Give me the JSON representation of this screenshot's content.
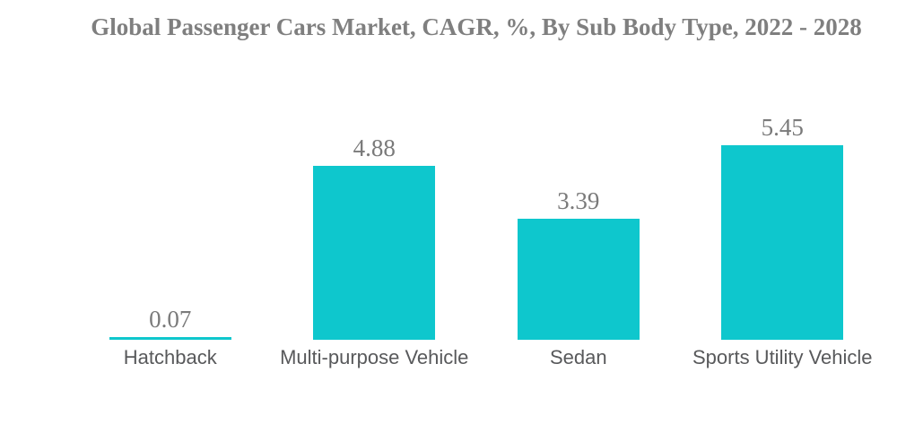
{
  "chart_data": {
    "type": "bar",
    "title": "Global Passenger Cars Market, CAGR, %, By Sub Body Type, 2022 - 2028",
    "categories": [
      "Hatchback",
      "Multi-purpose Vehicle",
      "Sedan",
      "Sports Utility Vehicle"
    ],
    "values": [
      0.07,
      4.88,
      3.39,
      5.45
    ],
    "xlabel": "",
    "ylabel": "",
    "ylim": [
      0,
      6
    ],
    "grid": false,
    "legend": "none",
    "axes_visible": false,
    "bar_color": "#0EC7CD",
    "title_color": "#7F7F7F",
    "value_label_color": "#7A7A7A",
    "category_label_color": "#58595B",
    "background_color": "#FFFFFF"
  }
}
